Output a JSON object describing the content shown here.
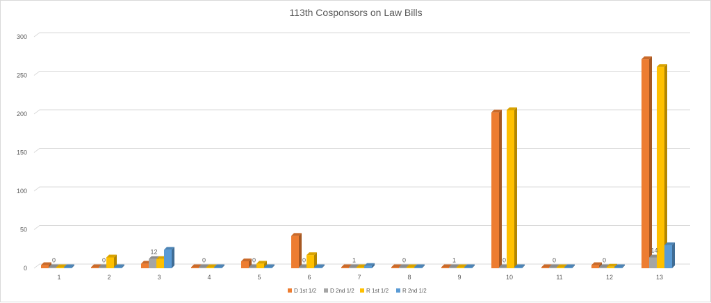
{
  "chart_data": {
    "type": "bar",
    "title": "113th Cosponsors on Law Bills",
    "categories": [
      "1",
      "2",
      "3",
      "4",
      "5",
      "6",
      "7",
      "8",
      "9",
      "10",
      "11",
      "12",
      "13"
    ],
    "ylim": [
      0,
      300
    ],
    "yticks": [
      0,
      50,
      100,
      150,
      200,
      250,
      300
    ],
    "grid": true,
    "legend": "bottom",
    "series": [
      {
        "name": "D 1st 1/2",
        "color": "#ED7D31",
        "values": [
          4,
          0,
          6,
          0,
          9,
          42,
          0,
          0,
          0,
          202,
          0,
          4,
          271
        ]
      },
      {
        "name": "D 2nd 1/2",
        "color": "#A5A5A5",
        "values": [
          0,
          0,
          12,
          0,
          0,
          0,
          1,
          0,
          1,
          0,
          0,
          0,
          14
        ],
        "labels": true
      },
      {
        "name": "R 1st 1/2",
        "color": "#FFC000",
        "values": [
          1,
          14,
          12,
          0,
          6,
          17,
          0,
          1,
          0,
          205,
          0,
          2,
          261
        ]
      },
      {
        "name": "R 2nd 1/2",
        "color": "#5B9BD5",
        "values": [
          0,
          0,
          24,
          0,
          0,
          0,
          3,
          0,
          0,
          0,
          0,
          0,
          30
        ]
      }
    ]
  }
}
